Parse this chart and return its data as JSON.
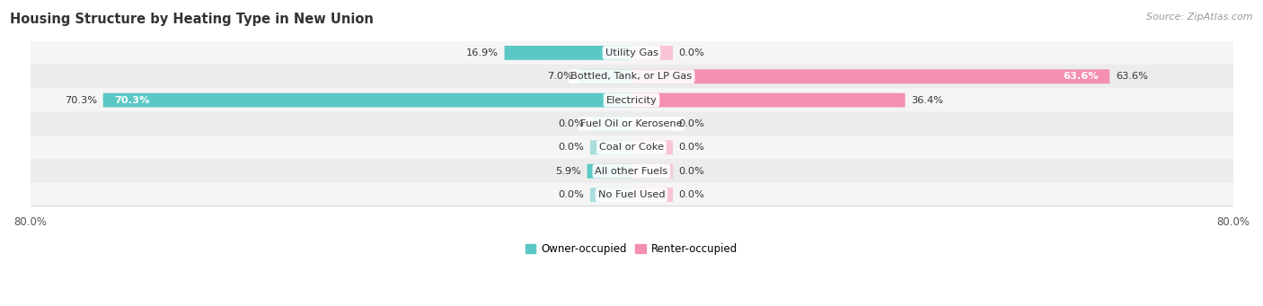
{
  "title": "Housing Structure by Heating Type in New Union",
  "source": "Source: ZipAtlas.com",
  "categories": [
    "Utility Gas",
    "Bottled, Tank, or LP Gas",
    "Electricity",
    "Fuel Oil or Kerosene",
    "Coal or Coke",
    "All other Fuels",
    "No Fuel Used"
  ],
  "owner_values": [
    16.9,
    7.0,
    70.3,
    0.0,
    0.0,
    5.9,
    0.0
  ],
  "renter_values": [
    0.0,
    63.6,
    36.4,
    0.0,
    0.0,
    0.0,
    0.0
  ],
  "owner_color": "#5bc8c5",
  "renter_color": "#f48fb1",
  "owner_stub_color": "#a8dedd",
  "renter_stub_color": "#f9c4d8",
  "row_bg_colors": [
    "#f5f5f5",
    "#ececec"
  ],
  "axis_limit": 80.0,
  "owner_label": "Owner-occupied",
  "renter_label": "Renter-occupied",
  "title_fontsize": 10.5,
  "legend_fontsize": 8.5,
  "category_fontsize": 8.2,
  "value_fontsize": 8.2,
  "source_fontsize": 8.0,
  "zero_stub": 5.5
}
